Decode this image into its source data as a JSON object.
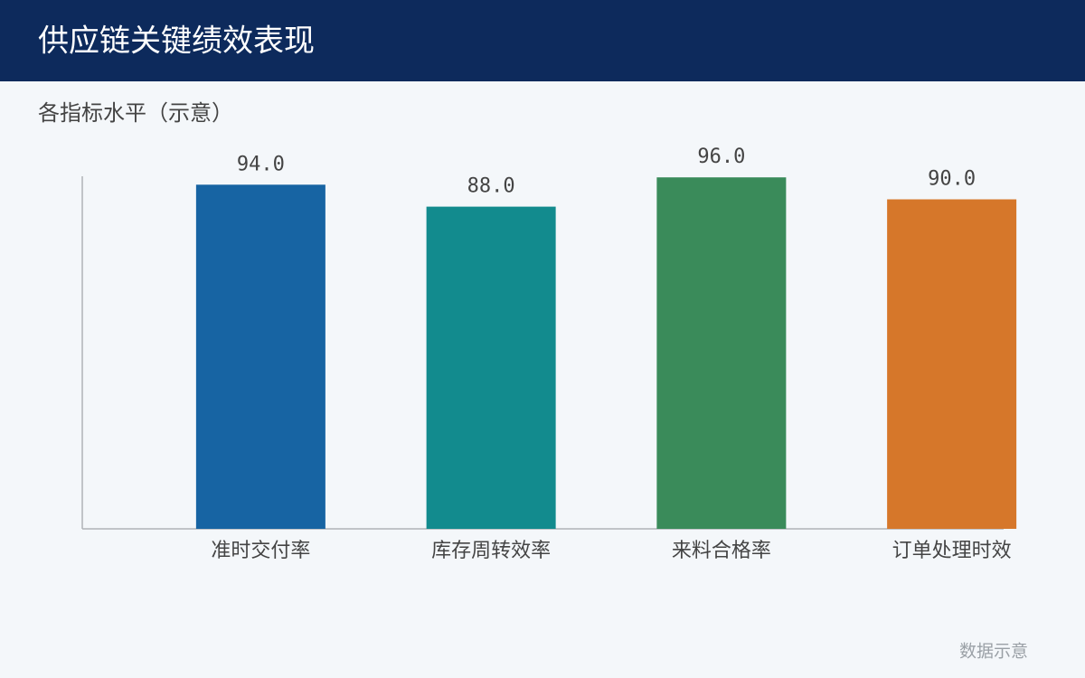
{
  "chart_data": {
    "type": "bar",
    "title": "供应链关键绩效表现",
    "subtitle": "各指标水平（示意）",
    "categories": [
      "准时交付率",
      "库存周转效率",
      "来料合格率",
      "订单处理时效"
    ],
    "values": [
      94,
      88,
      96,
      90
    ],
    "value_labels": [
      "94.0",
      "88.0",
      "96.0",
      "90.0"
    ],
    "colors": [
      "#1764a3",
      "#128b8e",
      "#3a8b5a",
      "#d6772a"
    ],
    "ylim": [
      0,
      100
    ],
    "note": "数据示意"
  }
}
